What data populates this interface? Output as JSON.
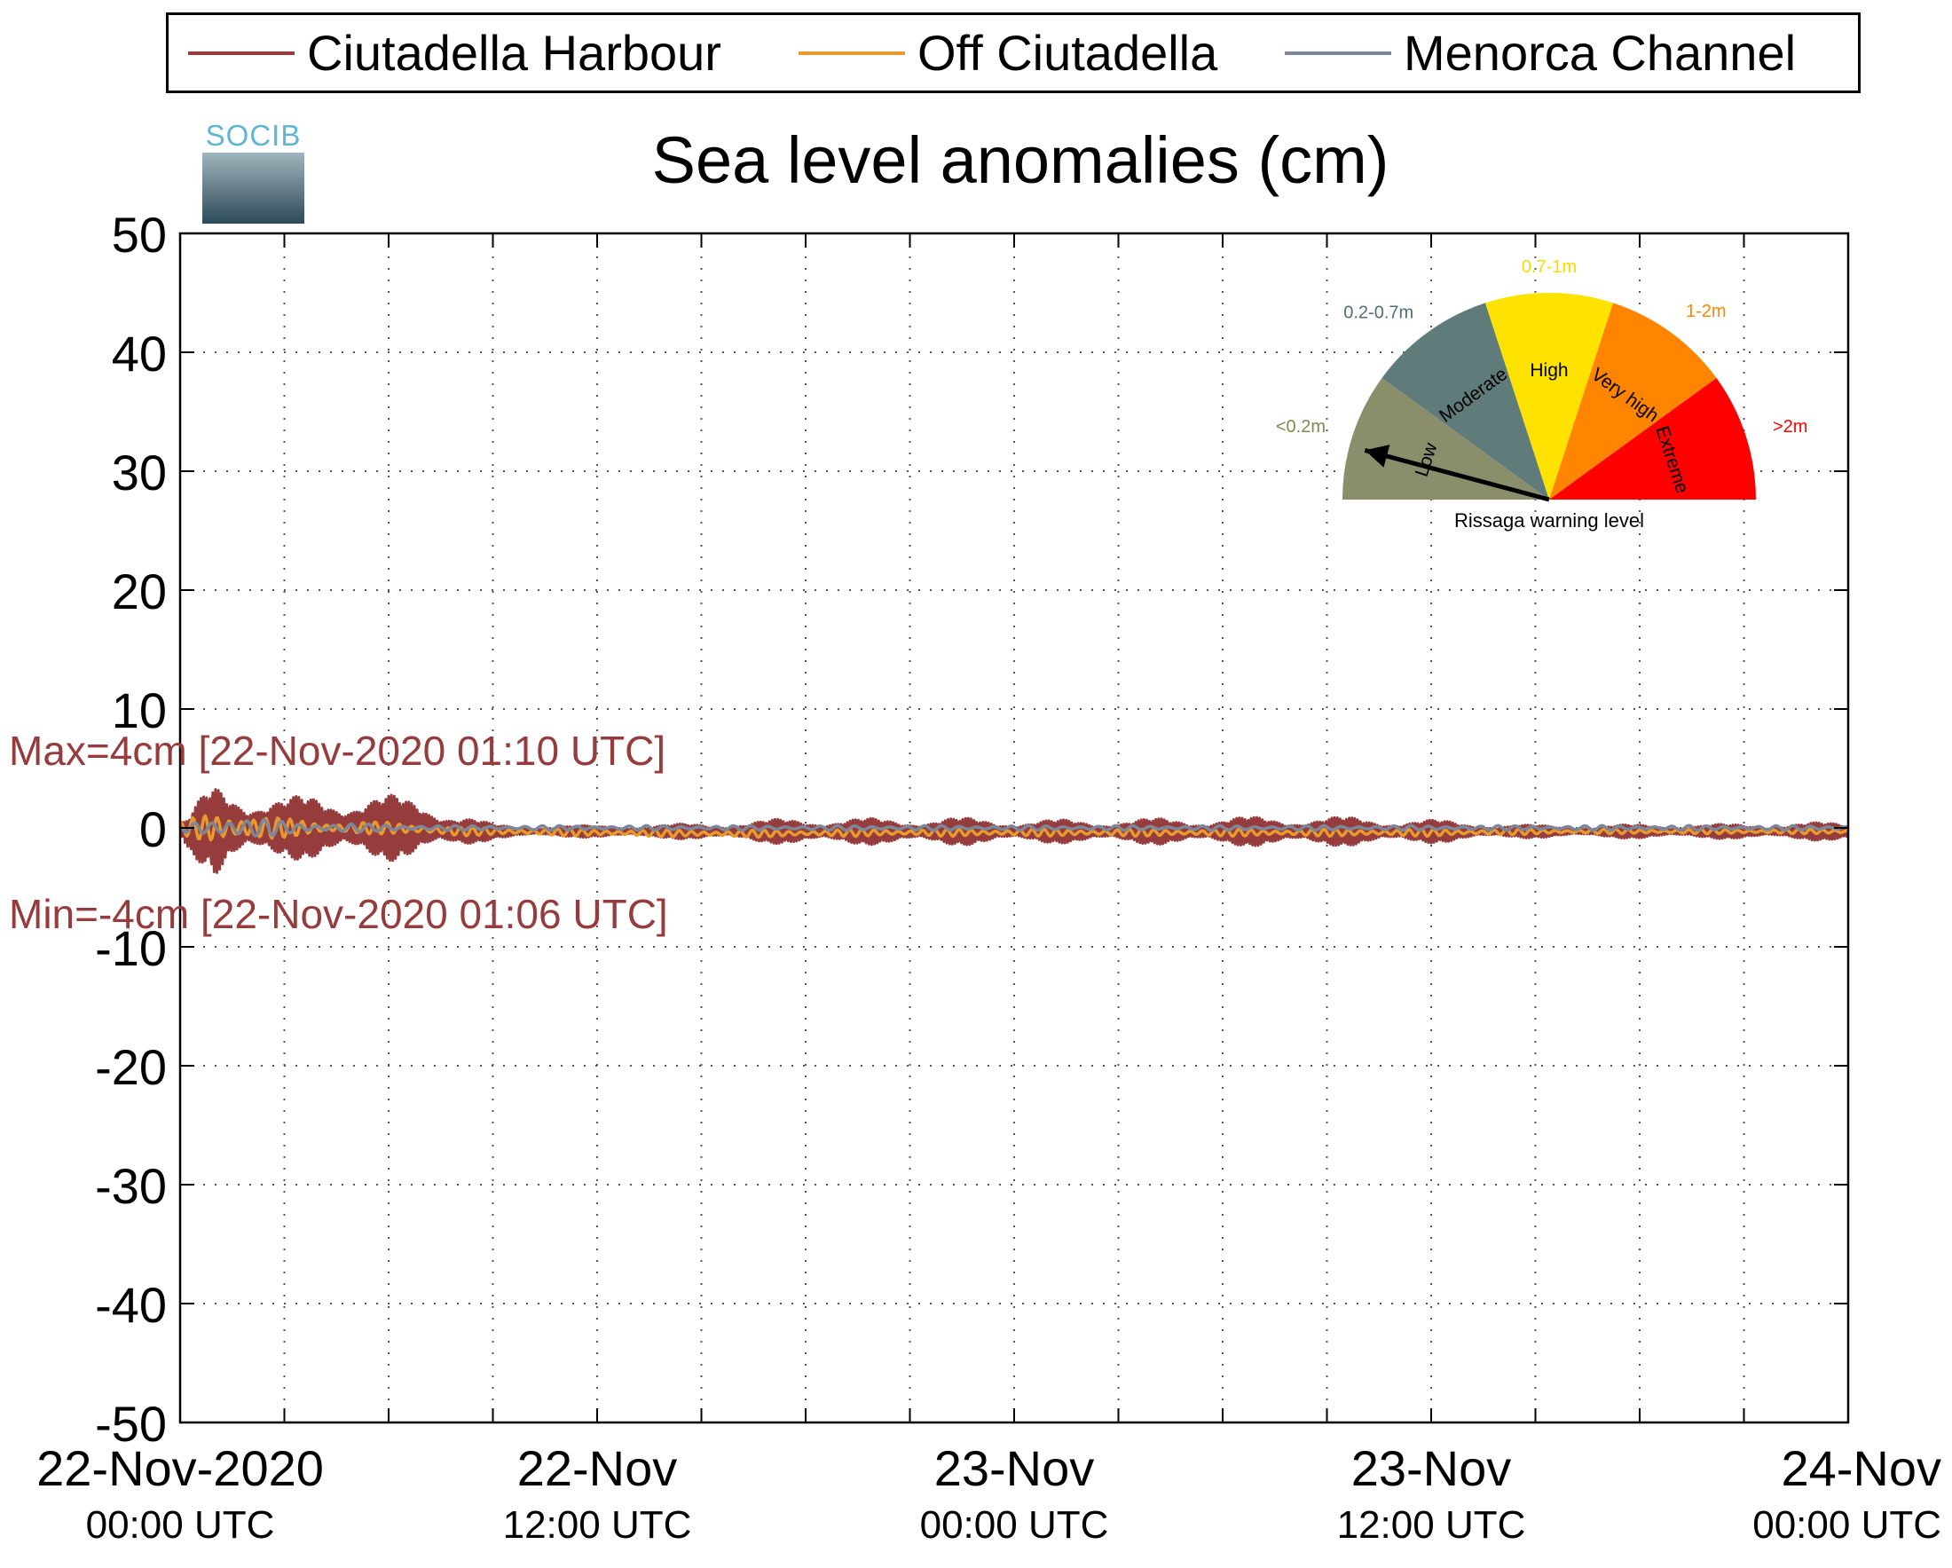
{
  "legend": {
    "items": [
      {
        "label": "Ciutadella Harbour",
        "color": "#963c3c"
      },
      {
        "label": "Off Ciutadella",
        "color": "#e89a2c"
      },
      {
        "label": "Menorca Channel",
        "color": "#7d879a"
      }
    ]
  },
  "logo": {
    "text": "SOCIB"
  },
  "gauge": {
    "segments": [
      {
        "name": "Low",
        "range": "<0.2m",
        "color": "#8a8e6a"
      },
      {
        "name": "Moderate",
        "range": "0.2-0.7m",
        "color": "#5f7b7a"
      },
      {
        "name": "High",
        "range": "0.7-1m",
        "color": "#ffe200"
      },
      {
        "name": "Very high",
        "range": "1-2m",
        "color": "#ff8500"
      },
      {
        "name": "Extreme",
        "range": ">2m",
        "color": "#ff0000"
      }
    ],
    "caption": "Rissaga warning level",
    "current_level": "Low"
  },
  "chart_data": {
    "type": "line",
    "title": "Sea level anomalies (cm)",
    "ylabel": "",
    "xlabel": "",
    "ylim": [
      -50,
      50
    ],
    "yticks": [
      50,
      40,
      30,
      20,
      10,
      0,
      -10,
      -20,
      -30,
      -40,
      -50
    ],
    "x_range_hours": [
      0,
      48
    ],
    "xticks": [
      {
        "hours": 0,
        "date": "22-Nov-2020",
        "time": "00:00 UTC"
      },
      {
        "hours": 12,
        "date": "22-Nov",
        "time": "12:00 UTC"
      },
      {
        "hours": 24,
        "date": "23-Nov",
        "time": "00:00 UTC"
      },
      {
        "hours": 36,
        "date": "23-Nov",
        "time": "12:00 UTC"
      },
      {
        "hours": 48,
        "date": "24-Nov",
        "time": "00:00 UTC"
      }
    ],
    "grid": true,
    "legend_position": "top",
    "series": [
      {
        "name": "Ciutadella Harbour",
        "color": "#963c3c",
        "x": [
          0,
          0.2,
          0.5,
          0.8,
          1,
          1.5,
          2,
          2.5,
          3,
          4,
          5,
          6,
          7,
          8,
          9,
          10,
          12,
          14,
          16,
          18,
          20,
          22,
          24,
          26,
          28,
          30,
          32,
          34,
          36,
          38,
          40,
          42,
          44,
          46,
          48
        ],
        "amplitude": [
          0.5,
          1.5,
          2.5,
          3.2,
          4,
          3.5,
          3.2,
          3,
          2.6,
          2.8,
          3,
          2.8,
          2.4,
          1.6,
          0.6,
          0.5,
          0.5,
          0.6,
          0.8,
          1.2,
          1.1,
          1.2,
          1.0,
          1.0,
          1.1,
          1.2,
          1.3,
          1.2,
          1.0,
          0.6,
          0.5,
          0.6,
          0.6,
          0.7,
          0.8
        ],
        "offset": [
          0,
          -0.5,
          -0.3,
          0,
          -0.3,
          0,
          0,
          0,
          0,
          0,
          0,
          0,
          0,
          -0.3,
          -0.3,
          -0.3,
          -0.3,
          -0.3,
          -0.3,
          -0.3,
          -0.3,
          -0.3,
          -0.3,
          -0.3,
          -0.3,
          -0.3,
          -0.3,
          -0.3,
          -0.3,
          -0.3,
          -0.3,
          -0.3,
          -0.3,
          -0.3,
          -0.3
        ]
      },
      {
        "name": "Off Ciutadella",
        "color": "#e89a2c",
        "x": [
          0,
          1,
          2,
          3,
          4,
          6,
          8,
          9,
          12,
          16,
          20,
          24,
          28,
          32,
          36,
          40,
          44,
          48
        ],
        "amplitude": [
          0.5,
          1.5,
          1.2,
          0.8,
          0.6,
          0.5,
          0.4,
          0.3,
          0.3,
          0.3,
          0.3,
          0.3,
          0.3,
          0.3,
          0.3,
          0.2,
          0.2,
          0.2
        ],
        "offset": [
          0,
          0,
          0,
          0,
          0,
          0,
          -0.3,
          -0.3,
          -0.4,
          -0.5,
          -0.4,
          -0.4,
          -0.4,
          -0.4,
          -0.4,
          -0.3,
          -0.3,
          -0.3
        ]
      },
      {
        "name": "Menorca Channel",
        "color": "#7d879a",
        "x": [
          0,
          1,
          2,
          3,
          4,
          6,
          8,
          12,
          16,
          20,
          24,
          28,
          32,
          36,
          40,
          44,
          48
        ],
        "amplitude": [
          0.3,
          1.0,
          0.8,
          0.6,
          0.4,
          0.3,
          0.2,
          0.2,
          0.2,
          0.2,
          0.2,
          0.2,
          0.2,
          0.2,
          0.2,
          0.2,
          0.2
        ],
        "offset": [
          0,
          0,
          0,
          0,
          0,
          0,
          0,
          0,
          0,
          0,
          0,
          0,
          0,
          0,
          0,
          0,
          0
        ]
      }
    ],
    "annotations": [
      {
        "text": "Max=4cm [22-Nov-2020 01:10 UTC]",
        "color": "#963c3c"
      },
      {
        "text": "Min=-4cm [22-Nov-2020 01:06 UTC]",
        "color": "#963c3c"
      }
    ]
  }
}
